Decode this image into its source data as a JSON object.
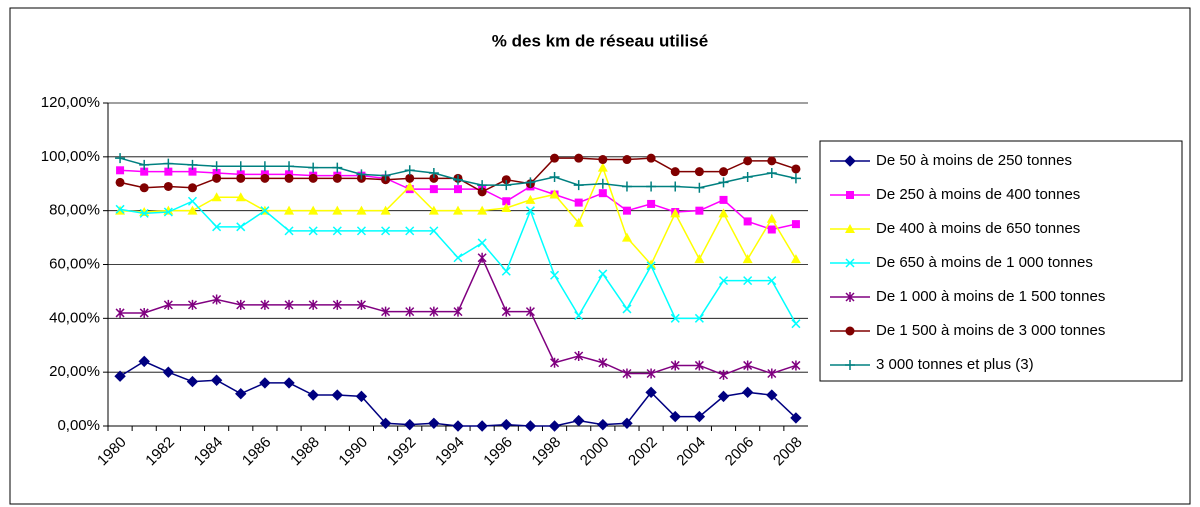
{
  "chart_data": {
    "type": "line",
    "title": "% des km de réseau utilisé",
    "categories": [
      "1980",
      null,
      "1982",
      null,
      "1984",
      null,
      "1986",
      null,
      "1988",
      null,
      "1990",
      null,
      "1992",
      null,
      "1994",
      null,
      "1996",
      null,
      "1998",
      null,
      "2000",
      null,
      "2002",
      null,
      "2004",
      null,
      "2006",
      null,
      "2008"
    ],
    "ylim": [
      0,
      120
    ],
    "yticks": [
      {
        "value": 0,
        "label": "0,00%"
      },
      {
        "value": 20,
        "label": "20,00%"
      },
      {
        "value": 40,
        "label": "40,00%"
      },
      {
        "value": 60,
        "label": "60,00%"
      },
      {
        "value": 80,
        "label": "80,00%"
      },
      {
        "value": 100,
        "label": "100,00%"
      },
      {
        "value": 120,
        "label": "120,00%"
      }
    ],
    "grid": true,
    "legend": "right",
    "series": [
      {
        "name": "De 50 à moins de 250 tonnes",
        "color": "#000080",
        "marker": "diamond",
        "values": [
          18.5,
          24,
          20,
          16.5,
          17,
          12,
          16,
          16,
          11.5,
          11.5,
          11,
          1,
          0.5,
          1,
          0,
          0,
          0.5,
          0,
          0,
          2,
          0.5,
          1,
          12.5,
          3.5,
          3.5,
          11,
          12.5,
          11.5,
          3
        ]
      },
      {
        "name": "De 250 à moins de 400 tonnes",
        "color": "#ff00ff",
        "marker": "square",
        "values": [
          95,
          94.5,
          94.5,
          94.5,
          94,
          93.5,
          93.5,
          93.5,
          93,
          93,
          93,
          92,
          88,
          88,
          88,
          88,
          83.5,
          89,
          86,
          83,
          86.5,
          80,
          82.5,
          79.5,
          80,
          84,
          76,
          73,
          75
        ]
      },
      {
        "name": "De 400 à moins de 650 tonnes",
        "color": "#ffff00",
        "marker": "triangle",
        "values": [
          80,
          79.5,
          80,
          80,
          85,
          85,
          80,
          80,
          80,
          80,
          80,
          80,
          89,
          80,
          80,
          80,
          81,
          84,
          86,
          75.5,
          96,
          70,
          60,
          79,
          62,
          79,
          62,
          77,
          62
        ]
      },
      {
        "name": "De 650 à moins de 1 000 tonnes",
        "color": "#00ffff",
        "marker": "x",
        "values": [
          80.5,
          79,
          79.5,
          83.5,
          74,
          74,
          80,
          72.5,
          72.5,
          72.5,
          72.5,
          72.5,
          72.5,
          72.5,
          62.5,
          68,
          57.5,
          80,
          56,
          41,
          56.5,
          43.5,
          59.5,
          40,
          40,
          54,
          54,
          54,
          38
        ]
      },
      {
        "name": "De 1 000 à moins de 1 500 tonnes",
        "color": "#800080",
        "marker": "star",
        "values": [
          42,
          42,
          45,
          45,
          47,
          45,
          45,
          45,
          45,
          45,
          45,
          42.5,
          42.5,
          42.5,
          42.5,
          62.5,
          42.5,
          42.5,
          23.5,
          26,
          23.5,
          19.5,
          19.5,
          22.5,
          22.5,
          19,
          22.5,
          19.5,
          22.5
        ]
      },
      {
        "name": "De 1 500 à moins de 3 000 tonnes",
        "color": "#800000",
        "marker": "circle",
        "values": [
          90.5,
          88.5,
          89,
          88.5,
          92,
          92,
          92,
          92,
          92,
          92,
          92,
          91.5,
          92,
          92,
          92,
          87,
          91.5,
          90,
          99.5,
          99.5,
          99,
          99,
          99.5,
          94.5,
          94.5,
          94.5,
          98.5,
          98.5,
          95.5
        ]
      },
      {
        "name": "3 000 tonnes et plus (3)",
        "color": "#008080",
        "marker": "plus",
        "values": [
          99.5,
          97,
          97.5,
          97,
          96.5,
          96.5,
          96.5,
          96.5,
          96,
          96,
          93.5,
          93,
          95,
          94,
          91.5,
          89.5,
          89.5,
          90.5,
          92.5,
          89.5,
          90,
          89,
          89,
          89,
          88.5,
          90.5,
          92.5,
          94,
          92
        ]
      }
    ]
  }
}
